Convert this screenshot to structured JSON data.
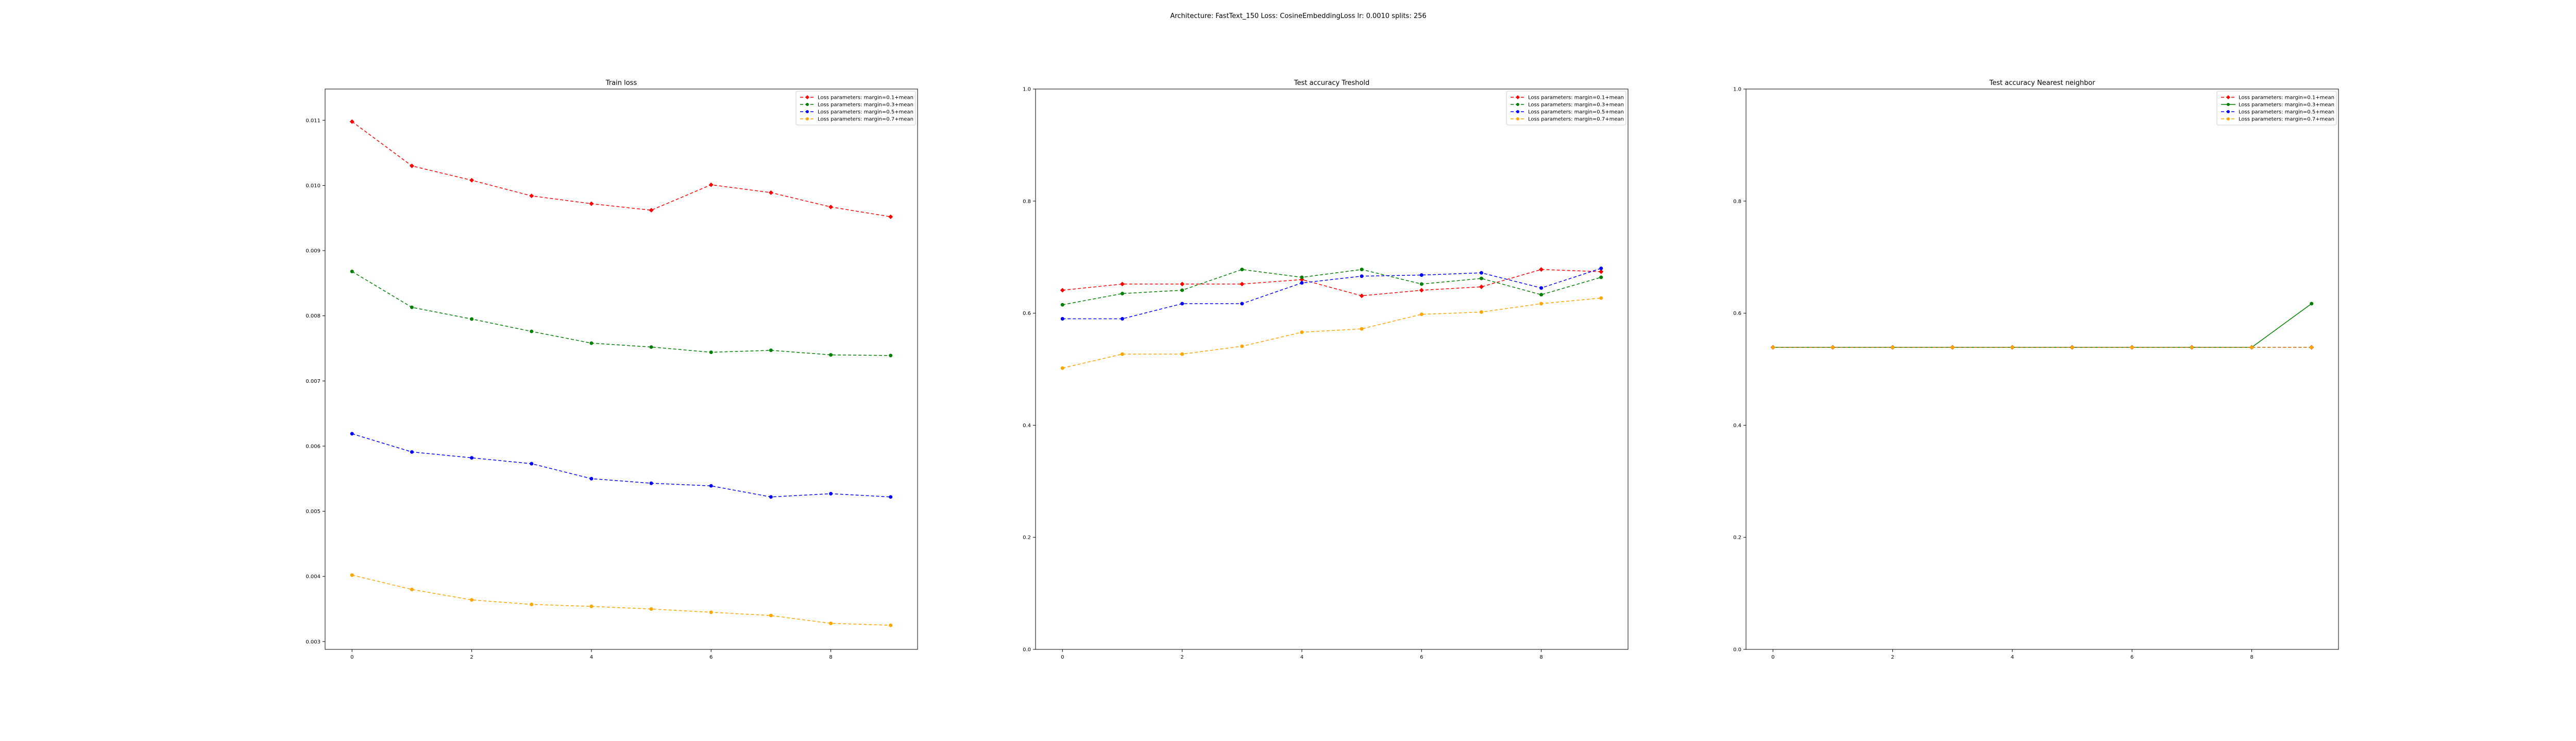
{
  "suptitle": "Architecture: FastText_150 Loss: CosineEmbeddingLoss lr: 0.0010 splits: 256",
  "colors": {
    "series_0": "#ff0000",
    "series_1": "#008000",
    "series_2": "#0000ff",
    "series_3": "#ffa500"
  },
  "chart_data": [
    {
      "type": "line",
      "title": "Train loss",
      "xlabel": "",
      "ylabel": "",
      "x": [
        0,
        1,
        2,
        3,
        4,
        5,
        6,
        7,
        8,
        9
      ],
      "xticks": [
        0,
        2,
        4,
        6,
        8
      ],
      "xlim": [
        -0.45,
        9.45
      ],
      "ylim": [
        0.00288,
        0.01148
      ],
      "yticks": [
        0.003,
        0.004,
        0.005,
        0.006,
        0.007,
        0.008,
        0.009,
        0.01,
        0.011
      ],
      "ytick_labels": [
        "0.003",
        "0.004",
        "0.005",
        "0.006",
        "0.007",
        "0.008",
        "0.009",
        "0.010",
        "0.011"
      ],
      "legend_position": "top-right",
      "series": [
        {
          "name": "Loss parameters: margin=0.1+mean",
          "line_style": "dashed",
          "values": [
            0.01098,
            0.0103,
            0.01008,
            0.00984,
            0.00972,
            0.00962,
            0.01001,
            0.00989,
            0.00967,
            0.00952
          ]
        },
        {
          "name": "Loss parameters: margin=0.3+mean",
          "line_style": "dashed",
          "values": [
            0.00868,
            0.00813,
            0.00795,
            0.00776,
            0.00758,
            0.00752,
            0.00744,
            0.00747,
            0.0074,
            0.00739
          ]
        },
        {
          "name": "Loss parameters: margin=0.5+mean",
          "line_style": "dashed",
          "values": [
            0.00619,
            0.00591,
            0.00582,
            0.00573,
            0.0055,
            0.00543,
            0.00539,
            0.00522,
            0.00527,
            0.00522
          ]
        },
        {
          "name": "Loss parameters: margin=0.7+mean",
          "line_style": "dashed",
          "values": [
            0.00402,
            0.0038,
            0.00364,
            0.00357,
            0.00354,
            0.0035,
            0.00345,
            0.0034,
            0.00328,
            0.00325
          ]
        }
      ]
    },
    {
      "type": "line",
      "title": "Test accuracy Treshold",
      "xlabel": "",
      "ylabel": "",
      "x": [
        0,
        1,
        2,
        3,
        4,
        5,
        6,
        7,
        8,
        9
      ],
      "xticks": [
        0,
        2,
        4,
        6,
        8
      ],
      "xlim": [
        -0.45,
        9.45
      ],
      "ylim": [
        0.0,
        1.0
      ],
      "yticks": [
        0.0,
        0.2,
        0.4,
        0.6,
        0.8,
        1.0
      ],
      "ytick_labels": [
        "0.0",
        "0.2",
        "0.4",
        "0.6",
        "0.8",
        "1.0"
      ],
      "legend_position": "top-right",
      "series": [
        {
          "name": "Loss parameters: margin=0.1+mean",
          "line_style": "dashed",
          "values": [
            0.641,
            0.652,
            0.652,
            0.652,
            0.66,
            0.631,
            0.641,
            0.647,
            0.678,
            0.674
          ]
        },
        {
          "name": "Loss parameters: margin=0.3+mean",
          "line_style": "dashed",
          "values": [
            0.615,
            0.635,
            0.641,
            0.678,
            0.664,
            0.678,
            0.652,
            0.662,
            0.633,
            0.664
          ]
        },
        {
          "name": "Loss parameters: margin=0.5+mean",
          "line_style": "dashed",
          "values": [
            0.59,
            0.59,
            0.617,
            0.617,
            0.654,
            0.666,
            0.668,
            0.672,
            0.645,
            0.68
          ]
        },
        {
          "name": "Loss parameters: margin=0.7+mean",
          "line_style": "dashed",
          "values": [
            0.502,
            0.527,
            0.527,
            0.541,
            0.566,
            0.572,
            0.598,
            0.602,
            0.617,
            0.627
          ]
        }
      ]
    },
    {
      "type": "line",
      "title": "Test accuracy Nearest neighbor",
      "xlabel": "",
      "ylabel": "",
      "x": [
        0,
        1,
        2,
        3,
        4,
        5,
        6,
        7,
        8,
        9
      ],
      "xticks": [
        0,
        2,
        4,
        6,
        8
      ],
      "xlim": [
        -0.45,
        9.45
      ],
      "ylim": [
        0.0,
        1.0
      ],
      "yticks": [
        0.0,
        0.2,
        0.4,
        0.6,
        0.8,
        1.0
      ],
      "ytick_labels": [
        "0.0",
        "0.2",
        "0.4",
        "0.6",
        "0.8",
        "1.0"
      ],
      "legend_position": "top-right",
      "series": [
        {
          "name": "Loss parameters: margin=0.1+mean",
          "line_style": "dashed",
          "values": [
            0.539,
            0.539,
            0.539,
            0.539,
            0.539,
            0.539,
            0.539,
            0.539,
            0.539,
            0.539
          ]
        },
        {
          "name": "Loss parameters: margin=0.3+mean",
          "line_style": "solid",
          "values": [
            0.539,
            0.539,
            0.539,
            0.539,
            0.539,
            0.539,
            0.539,
            0.539,
            0.539,
            0.617
          ]
        },
        {
          "name": "Loss parameters: margin=0.5+mean",
          "line_style": "dashed",
          "values": [
            0.539,
            0.539,
            0.539,
            0.539,
            0.539,
            0.539,
            0.539,
            0.539,
            0.539,
            0.539
          ]
        },
        {
          "name": "Loss parameters: margin=0.7+mean",
          "line_style": "dashed",
          "values": [
            0.539,
            0.539,
            0.539,
            0.539,
            0.539,
            0.539,
            0.539,
            0.539,
            0.539,
            0.539
          ]
        }
      ]
    }
  ]
}
